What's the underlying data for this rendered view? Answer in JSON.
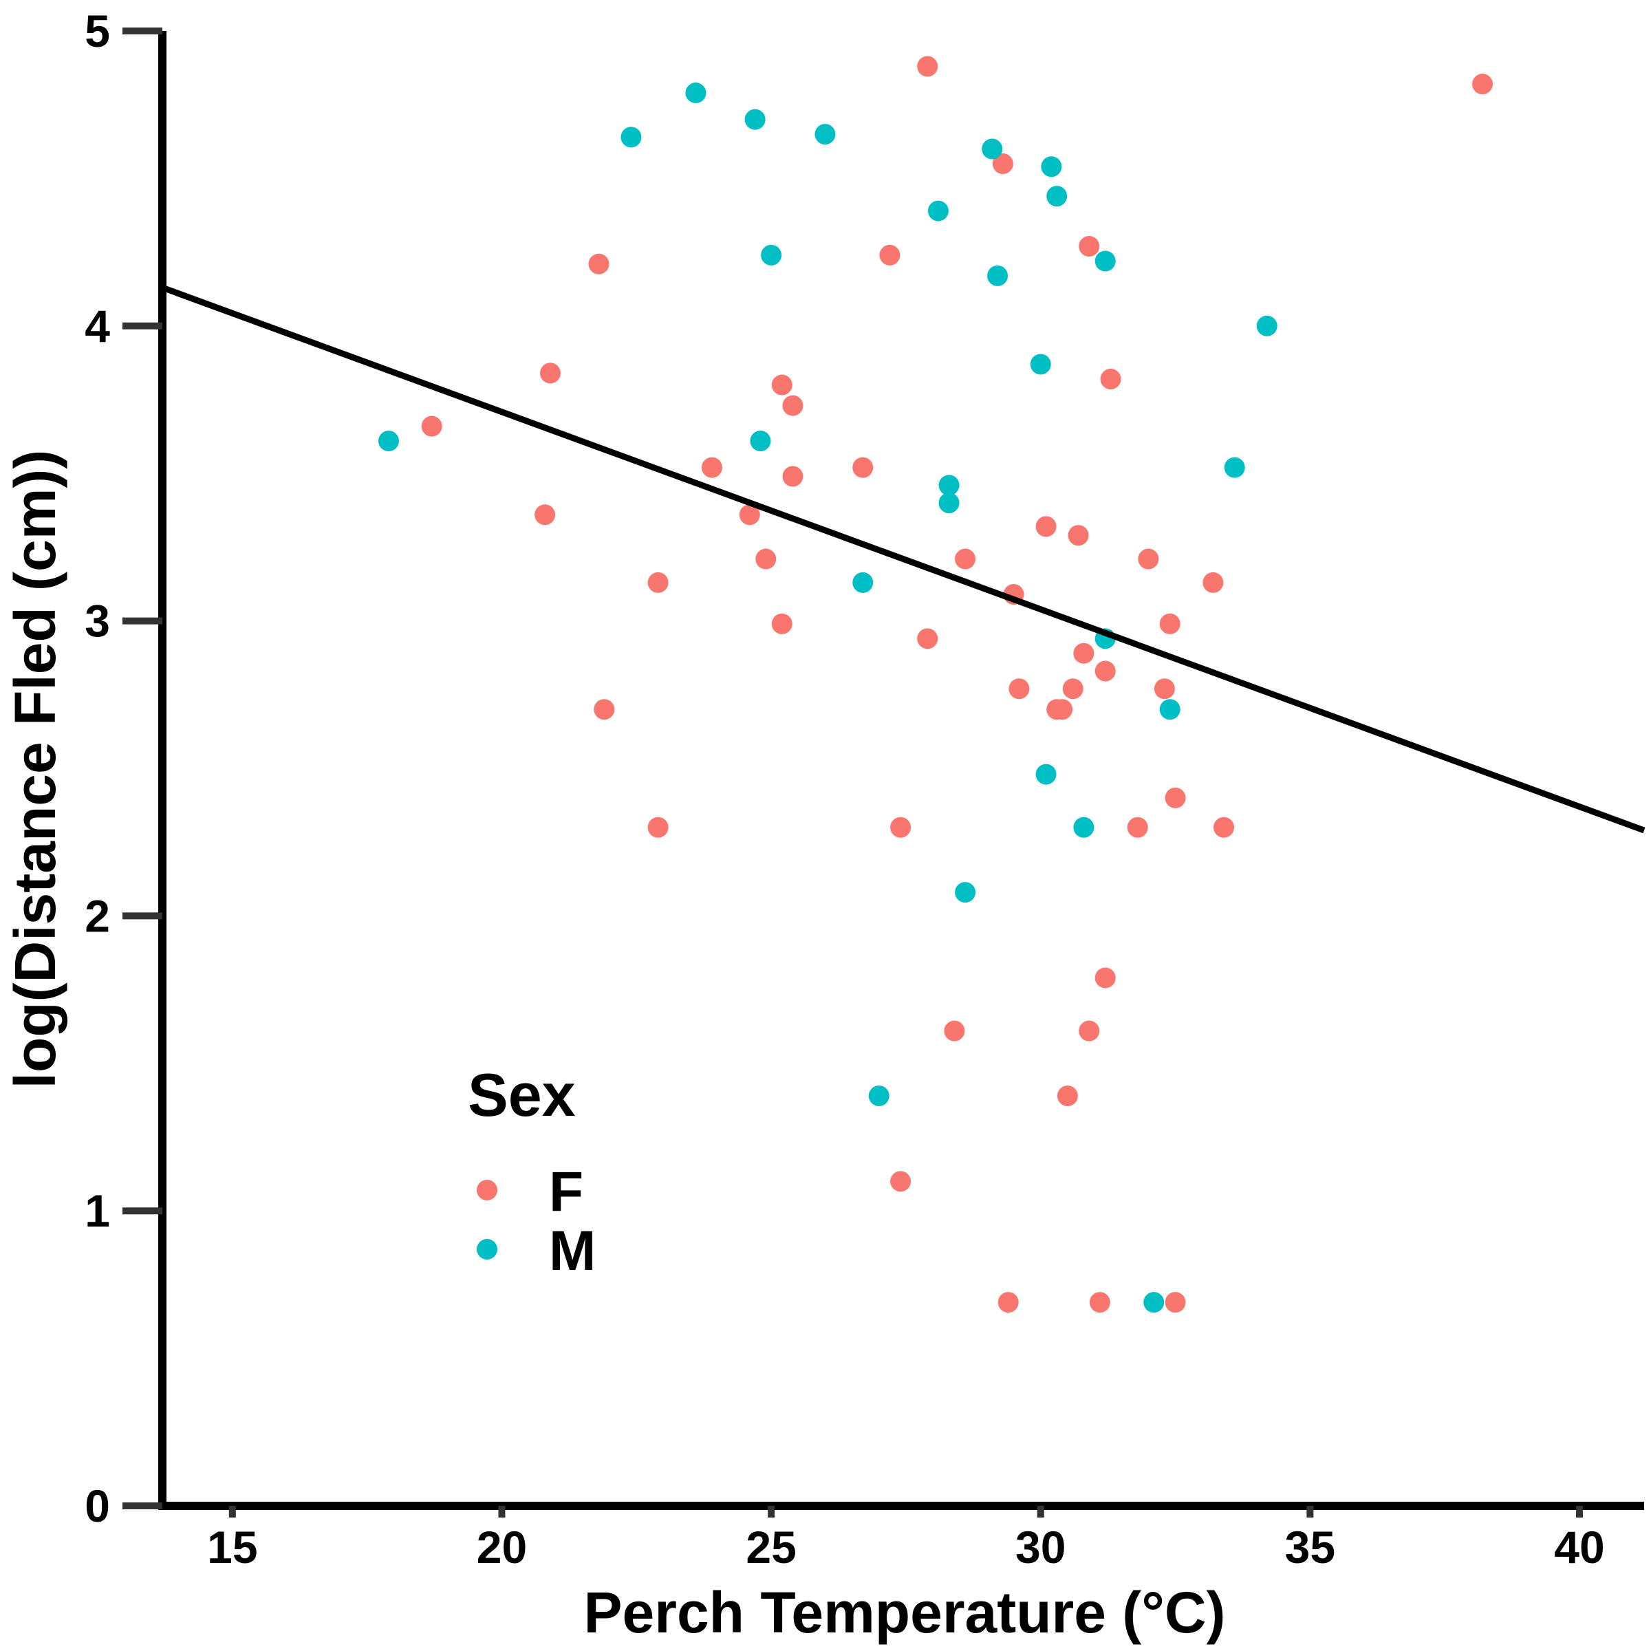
{
  "chart_data": {
    "type": "scatter",
    "title": "",
    "xlabel": "Perch Temperature (°C)",
    "ylabel": "log(Distance Fled (cm))",
    "xlim": [
      13.7,
      41.2
    ],
    "ylim": [
      0,
      5
    ],
    "x_ticks": [
      15,
      20,
      25,
      30,
      35,
      40
    ],
    "y_ticks": [
      0,
      1,
      2,
      3,
      4,
      5
    ],
    "grid": false,
    "legend": {
      "title": "Sex",
      "placement": "bottom-left-inside",
      "entries": [
        {
          "label": "F",
          "color": "#F8766D"
        },
        {
          "label": "M",
          "color": "#00BFC4"
        }
      ]
    },
    "trend_line": {
      "x": [
        13.7,
        41.2
      ],
      "y": [
        4.13,
        2.29
      ],
      "color": "#000000"
    },
    "series": [
      {
        "name": "F",
        "color": "#F8766D",
        "points": [
          [
            27.9,
            4.88
          ],
          [
            38.2,
            4.82
          ],
          [
            29.3,
            4.55
          ],
          [
            30.9,
            4.27
          ],
          [
            27.2,
            4.24
          ],
          [
            21.8,
            4.21
          ],
          [
            20.9,
            3.84
          ],
          [
            31.3,
            3.82
          ],
          [
            25.2,
            3.8
          ],
          [
            25.4,
            3.73
          ],
          [
            18.7,
            3.66
          ],
          [
            23.9,
            3.52
          ],
          [
            26.7,
            3.52
          ],
          [
            25.4,
            3.49
          ],
          [
            20.8,
            3.36
          ],
          [
            24.6,
            3.36
          ],
          [
            30.1,
            3.32
          ],
          [
            30.7,
            3.29
          ],
          [
            24.9,
            3.21
          ],
          [
            28.6,
            3.21
          ],
          [
            32.0,
            3.21
          ],
          [
            22.9,
            3.13
          ],
          [
            33.2,
            3.13
          ],
          [
            29.5,
            3.09
          ],
          [
            25.2,
            2.99
          ],
          [
            32.4,
            2.99
          ],
          [
            27.9,
            2.94
          ],
          [
            30.8,
            2.89
          ],
          [
            31.2,
            2.83
          ],
          [
            29.6,
            2.77
          ],
          [
            30.6,
            2.77
          ],
          [
            32.3,
            2.77
          ],
          [
            21.9,
            2.7
          ],
          [
            30.3,
            2.7
          ],
          [
            30.4,
            2.7
          ],
          [
            32.5,
            2.4
          ],
          [
            22.9,
            2.3
          ],
          [
            27.4,
            2.3
          ],
          [
            31.8,
            2.3
          ],
          [
            33.4,
            2.3
          ],
          [
            31.2,
            1.79
          ],
          [
            28.4,
            1.61
          ],
          [
            30.9,
            1.61
          ],
          [
            30.5,
            1.39
          ],
          [
            27.4,
            1.1
          ],
          [
            29.4,
            0.69
          ],
          [
            31.1,
            0.69
          ],
          [
            32.5,
            0.69
          ]
        ]
      },
      {
        "name": "M",
        "color": "#00BFC4",
        "points": [
          [
            23.6,
            4.79
          ],
          [
            24.7,
            4.7
          ],
          [
            26.0,
            4.65
          ],
          [
            22.4,
            4.64
          ],
          [
            29.1,
            4.6
          ],
          [
            30.2,
            4.54
          ],
          [
            30.3,
            4.44
          ],
          [
            28.1,
            4.39
          ],
          [
            25.0,
            4.24
          ],
          [
            31.2,
            4.22
          ],
          [
            29.2,
            4.17
          ],
          [
            34.2,
            4.0
          ],
          [
            30.0,
            3.87
          ],
          [
            17.9,
            3.61
          ],
          [
            24.8,
            3.61
          ],
          [
            33.6,
            3.52
          ],
          [
            28.3,
            3.46
          ],
          [
            28.3,
            3.4
          ],
          [
            26.7,
            3.13
          ],
          [
            31.2,
            2.94
          ],
          [
            32.4,
            2.7
          ],
          [
            30.1,
            2.48
          ],
          [
            30.8,
            2.3
          ],
          [
            28.6,
            2.08
          ],
          [
            27.0,
            1.39
          ],
          [
            32.1,
            0.69
          ]
        ]
      }
    ]
  }
}
